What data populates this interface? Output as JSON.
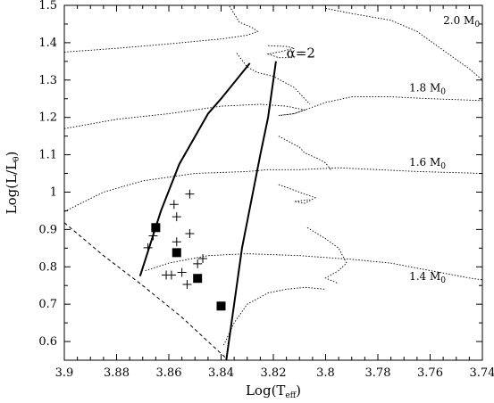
{
  "chart_data": {
    "type": "scatter",
    "xlabel": "Log(T",
    "xlabel_sub": "eff",
    "xlabel_end": ")",
    "ylabel": "Log(L/L",
    "ylabel_sub": "θ",
    "ylabel_end": ")",
    "xlim": [
      3.9,
      3.74
    ],
    "ylim": [
      0.55,
      1.5
    ],
    "x_reversed": true,
    "grid": false,
    "x_ticks": [
      3.9,
      3.88,
      3.86,
      3.84,
      3.82,
      3.8,
      3.78,
      3.76,
      3.74
    ],
    "x_tick_labels": [
      "3.9",
      "3.88",
      "3.86",
      "3.84",
      "3.82",
      "3.8",
      "3.78",
      "3.76",
      "3.74"
    ],
    "y_ticks": [
      0.6,
      0.7,
      0.8,
      0.9,
      1.0,
      1.1,
      1.2,
      1.3,
      1.4,
      1.5
    ],
    "y_tick_labels": [
      "0.6",
      "0.7",
      "0.8",
      "0.9",
      "1",
      "1.1",
      "1.2",
      "1.3",
      "1.4",
      "1.5"
    ],
    "annotations": [
      {
        "text": "2.0 M",
        "sub": "0",
        "x": 3.755,
        "y": 1.45,
        "style": "small"
      },
      {
        "text": "1.8 M",
        "sub": "0",
        "x": 3.768,
        "y": 1.27,
        "style": "small"
      },
      {
        "text": "1.6 M",
        "sub": "0",
        "x": 3.768,
        "y": 1.07,
        "style": "small"
      },
      {
        "text": "1.4 M",
        "sub": "0",
        "x": 3.768,
        "y": 0.765,
        "style": "small"
      },
      {
        "text": "α=2",
        "sub": "",
        "x": 3.815,
        "y": 1.36,
        "style": "big"
      }
    ],
    "series": [
      {
        "kind": "squares",
        "points": [
          [
            3.865,
            0.905
          ],
          [
            3.857,
            0.838
          ],
          [
            3.849,
            0.769
          ],
          [
            3.84,
            0.695
          ]
        ]
      },
      {
        "kind": "plus",
        "points": [
          [
            3.866,
            0.883
          ],
          [
            3.868,
            0.851
          ],
          [
            3.858,
            0.967
          ],
          [
            3.852,
            0.995
          ],
          [
            3.857,
            0.934
          ],
          [
            3.852,
            0.889
          ],
          [
            3.857,
            0.867
          ],
          [
            3.849,
            0.808
          ],
          [
            3.847,
            0.822
          ],
          [
            3.855,
            0.785
          ],
          [
            3.859,
            0.778
          ],
          [
            3.861,
            0.778
          ],
          [
            3.853,
            0.753
          ]
        ]
      },
      {
        "kind": "blue-edge",
        "style": "solid",
        "points": [
          [
            3.871,
            0.775
          ],
          [
            3.863,
            0.95
          ],
          [
            3.856,
            1.075
          ],
          [
            3.845,
            1.21
          ],
          [
            3.84,
            1.25
          ],
          [
            3.829,
            1.345
          ]
        ]
      },
      {
        "kind": "red-edge",
        "style": "solid",
        "points": [
          [
            3.838,
            0.55
          ],
          [
            3.832,
            0.85
          ],
          [
            3.825,
            1.1
          ],
          [
            3.822,
            1.2
          ],
          [
            3.82,
            1.3
          ],
          [
            3.819,
            1.35
          ]
        ]
      },
      {
        "kind": "zams",
        "style": "dashed",
        "points": [
          [
            3.9,
            0.918
          ],
          [
            3.885,
            0.83
          ],
          [
            3.87,
            0.75
          ],
          [
            3.855,
            0.665
          ],
          [
            3.845,
            0.6
          ],
          [
            3.838,
            0.555
          ]
        ]
      },
      {
        "kind": "track-2.0",
        "style": "dotted",
        "points": [
          [
            3.9,
            1.375
          ],
          [
            3.88,
            1.385
          ],
          [
            3.86,
            1.397
          ],
          [
            3.84,
            1.41
          ],
          [
            3.83,
            1.42
          ],
          [
            3.826,
            1.43
          ],
          [
            3.828,
            1.44
          ],
          [
            3.833,
            1.455
          ],
          [
            3.837,
            1.5
          ]
        ]
      },
      {
        "kind": "track-2.0-tail",
        "style": "dotted",
        "points": [
          [
            3.8,
            1.492
          ],
          [
            3.79,
            1.478
          ],
          [
            3.775,
            1.46
          ],
          [
            3.765,
            1.43
          ],
          [
            3.755,
            1.38
          ],
          [
            3.745,
            1.33
          ],
          [
            3.74,
            1.3
          ]
        ]
      },
      {
        "kind": "track-2.0-hook",
        "style": "dotted",
        "points": [
          [
            3.822,
            1.392
          ],
          [
            3.815,
            1.39
          ],
          [
            3.812,
            1.385
          ],
          [
            3.818,
            1.375
          ],
          [
            3.822,
            1.37
          ],
          [
            3.818,
            1.36
          ],
          [
            3.812,
            1.36
          ]
        ]
      },
      {
        "kind": "track-1.8",
        "style": "dotted",
        "points": [
          [
            3.9,
            1.17
          ],
          [
            3.88,
            1.195
          ],
          [
            3.86,
            1.21
          ],
          [
            3.84,
            1.23
          ],
          [
            3.825,
            1.235
          ],
          [
            3.815,
            1.23
          ],
          [
            3.808,
            1.22
          ],
          [
            3.812,
            1.21
          ],
          [
            3.818,
            1.205
          ],
          [
            3.812,
            1.21
          ],
          [
            3.8,
            1.24
          ],
          [
            3.79,
            1.255
          ],
          [
            3.775,
            1.255
          ],
          [
            3.76,
            1.25
          ],
          [
            3.74,
            1.245
          ]
        ]
      },
      {
        "kind": "track-1.8-b",
        "style": "dotted",
        "points": [
          [
            3.834,
            1.372
          ],
          [
            3.83,
            1.335
          ],
          [
            3.826,
            1.32
          ],
          [
            3.82,
            1.31
          ],
          [
            3.812,
            1.28
          ],
          [
            3.808,
            1.25
          ],
          [
            3.806,
            1.235
          ]
        ]
      },
      {
        "kind": "track-1.6",
        "style": "dotted",
        "points": [
          [
            3.9,
            0.948
          ],
          [
            3.885,
            1.0
          ],
          [
            3.87,
            1.03
          ],
          [
            3.85,
            1.05
          ],
          [
            3.83,
            1.055
          ],
          [
            3.822,
            1.06
          ],
          [
            3.81,
            1.06
          ],
          [
            3.795,
            1.065
          ],
          [
            3.78,
            1.06
          ],
          [
            3.765,
            1.055
          ],
          [
            3.74,
            1.05
          ]
        ]
      },
      {
        "kind": "track-1.6-b",
        "style": "dotted",
        "points": [
          [
            3.818,
            1.15
          ],
          [
            3.81,
            1.12
          ],
          [
            3.808,
            1.105
          ],
          [
            3.803,
            1.09
          ],
          [
            3.8,
            1.078
          ],
          [
            3.798,
            1.06
          ]
        ]
      },
      {
        "kind": "track-1.6-c",
        "style": "dotted",
        "points": [
          [
            3.818,
            1.02
          ],
          [
            3.81,
            1.0
          ],
          [
            3.804,
            0.985
          ],
          [
            3.808,
            0.97
          ],
          [
            3.812,
            0.975
          ],
          [
            3.806,
            0.98
          ]
        ]
      },
      {
        "kind": "track-1.4",
        "style": "dotted",
        "points": [
          [
            3.869,
            0.79
          ],
          [
            3.86,
            0.81
          ],
          [
            3.845,
            0.83
          ],
          [
            3.83,
            0.835
          ],
          [
            3.81,
            0.83
          ],
          [
            3.8,
            0.825
          ],
          [
            3.79,
            0.82
          ],
          [
            3.775,
            0.81
          ],
          [
            3.76,
            0.79
          ],
          [
            3.745,
            0.77
          ],
          [
            3.74,
            0.765
          ]
        ]
      },
      {
        "kind": "track-1.4-b",
        "style": "dotted",
        "points": [
          [
            3.807,
            0.905
          ],
          [
            3.8,
            0.875
          ],
          [
            3.795,
            0.85
          ],
          [
            3.792,
            0.81
          ],
          [
            3.795,
            0.79
          ],
          [
            3.8,
            0.77
          ],
          [
            3.795,
            0.755
          ]
        ]
      },
      {
        "kind": "track-1.4-c",
        "style": "dotted",
        "points": [
          [
            3.839,
            0.59
          ],
          [
            3.835,
            0.65
          ],
          [
            3.83,
            0.7
          ],
          [
            3.822,
            0.73
          ],
          [
            3.815,
            0.74
          ],
          [
            3.808,
            0.745
          ],
          [
            3.8,
            0.74
          ]
        ]
      }
    ]
  }
}
